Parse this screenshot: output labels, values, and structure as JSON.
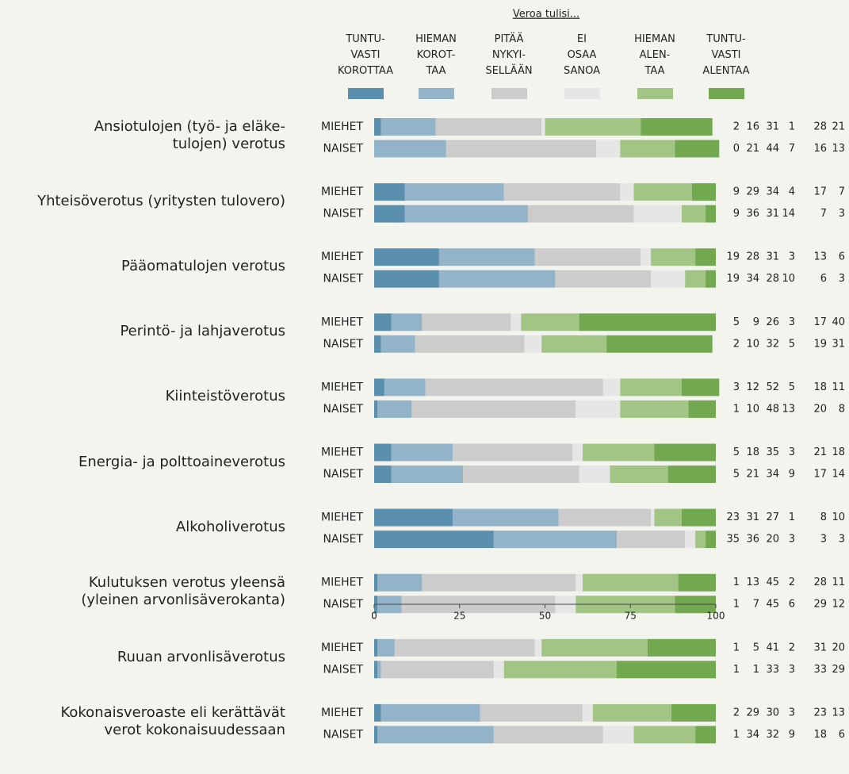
{
  "chart_data": {
    "type": "stacked-bar-horizontal",
    "title": "Veroa tulisi...",
    "categories": [
      "Ansiotulojen (työ- ja eläke-\ntulojen) verotus",
      "Yhteisöverotus (yritysten tulovero)",
      "Pääomatulojen verotus",
      "Perintö- ja lahjaverotus",
      "Kiinteistöverotus",
      "Energia- ja polttoaineverotus",
      "Alkoholiverotus",
      "Kulutuksen verotus yleensä\n(yleinen arvonlisäverokanta)",
      "Ruuan arvonlisäverotus",
      "Kokonaisveroaste eli kerättävät\nverot kokonaisuudessaan"
    ],
    "groups": [
      "MIEHET",
      "NAISET"
    ],
    "series": [
      {
        "name": "TUNTU-\nVASTI\nKOROTTAA",
        "color": "#5a8fae",
        "values": [
          [
            2,
            0
          ],
          [
            9,
            9
          ],
          [
            19,
            19
          ],
          [
            5,
            2
          ],
          [
            3,
            1
          ],
          [
            5,
            5
          ],
          [
            23,
            35
          ],
          [
            1,
            1
          ],
          [
            1,
            1
          ],
          [
            2,
            1
          ]
        ]
      },
      {
        "name": "HIEMAN\nKOROT-\nTAA",
        "color": "#93b4c8",
        "values": [
          [
            16,
            21
          ],
          [
            29,
            36
          ],
          [
            28,
            34
          ],
          [
            9,
            10
          ],
          [
            12,
            10
          ],
          [
            18,
            21
          ],
          [
            31,
            36
          ],
          [
            13,
            7
          ],
          [
            5,
            1
          ],
          [
            29,
            34
          ]
        ]
      },
      {
        "name": "PITÄÄ\nNYKYI-\nSELLÄÄN",
        "color": "#cccccc",
        "values": [
          [
            31,
            44
          ],
          [
            34,
            31
          ],
          [
            31,
            28
          ],
          [
            26,
            32
          ],
          [
            52,
            48
          ],
          [
            35,
            34
          ],
          [
            27,
            20
          ],
          [
            45,
            45
          ],
          [
            41,
            33
          ],
          [
            30,
            32
          ]
        ]
      },
      {
        "name": "EI\nOSAA\nSANOA",
        "color": "#e6e6e6",
        "values": [
          [
            1,
            7
          ],
          [
            4,
            14
          ],
          [
            3,
            10
          ],
          [
            3,
            5
          ],
          [
            5,
            13
          ],
          [
            3,
            9
          ],
          [
            1,
            3
          ],
          [
            2,
            6
          ],
          [
            2,
            3
          ],
          [
            3,
            9
          ]
        ]
      },
      {
        "name": "HIEMAN\nALEN-\nTAA",
        "color": "#a2c585",
        "values": [
          [
            28,
            16
          ],
          [
            17,
            7
          ],
          [
            13,
            6
          ],
          [
            17,
            19
          ],
          [
            18,
            20
          ],
          [
            21,
            17
          ],
          [
            8,
            3
          ],
          [
            28,
            29
          ],
          [
            31,
            33
          ],
          [
            23,
            18
          ]
        ]
      },
      {
        "name": "TUNTU-\nVASTI\nALENTAA",
        "color": "#72a950",
        "values": [
          [
            21,
            13
          ],
          [
            7,
            3
          ],
          [
            6,
            3
          ],
          [
            40,
            31
          ],
          [
            11,
            8
          ],
          [
            18,
            14
          ],
          [
            10,
            3
          ],
          [
            11,
            12
          ],
          [
            20,
            29
          ],
          [
            13,
            6
          ]
        ]
      }
    ],
    "xlim": [
      0,
      100
    ],
    "xticks": [
      0,
      25,
      50,
      75,
      100
    ]
  }
}
